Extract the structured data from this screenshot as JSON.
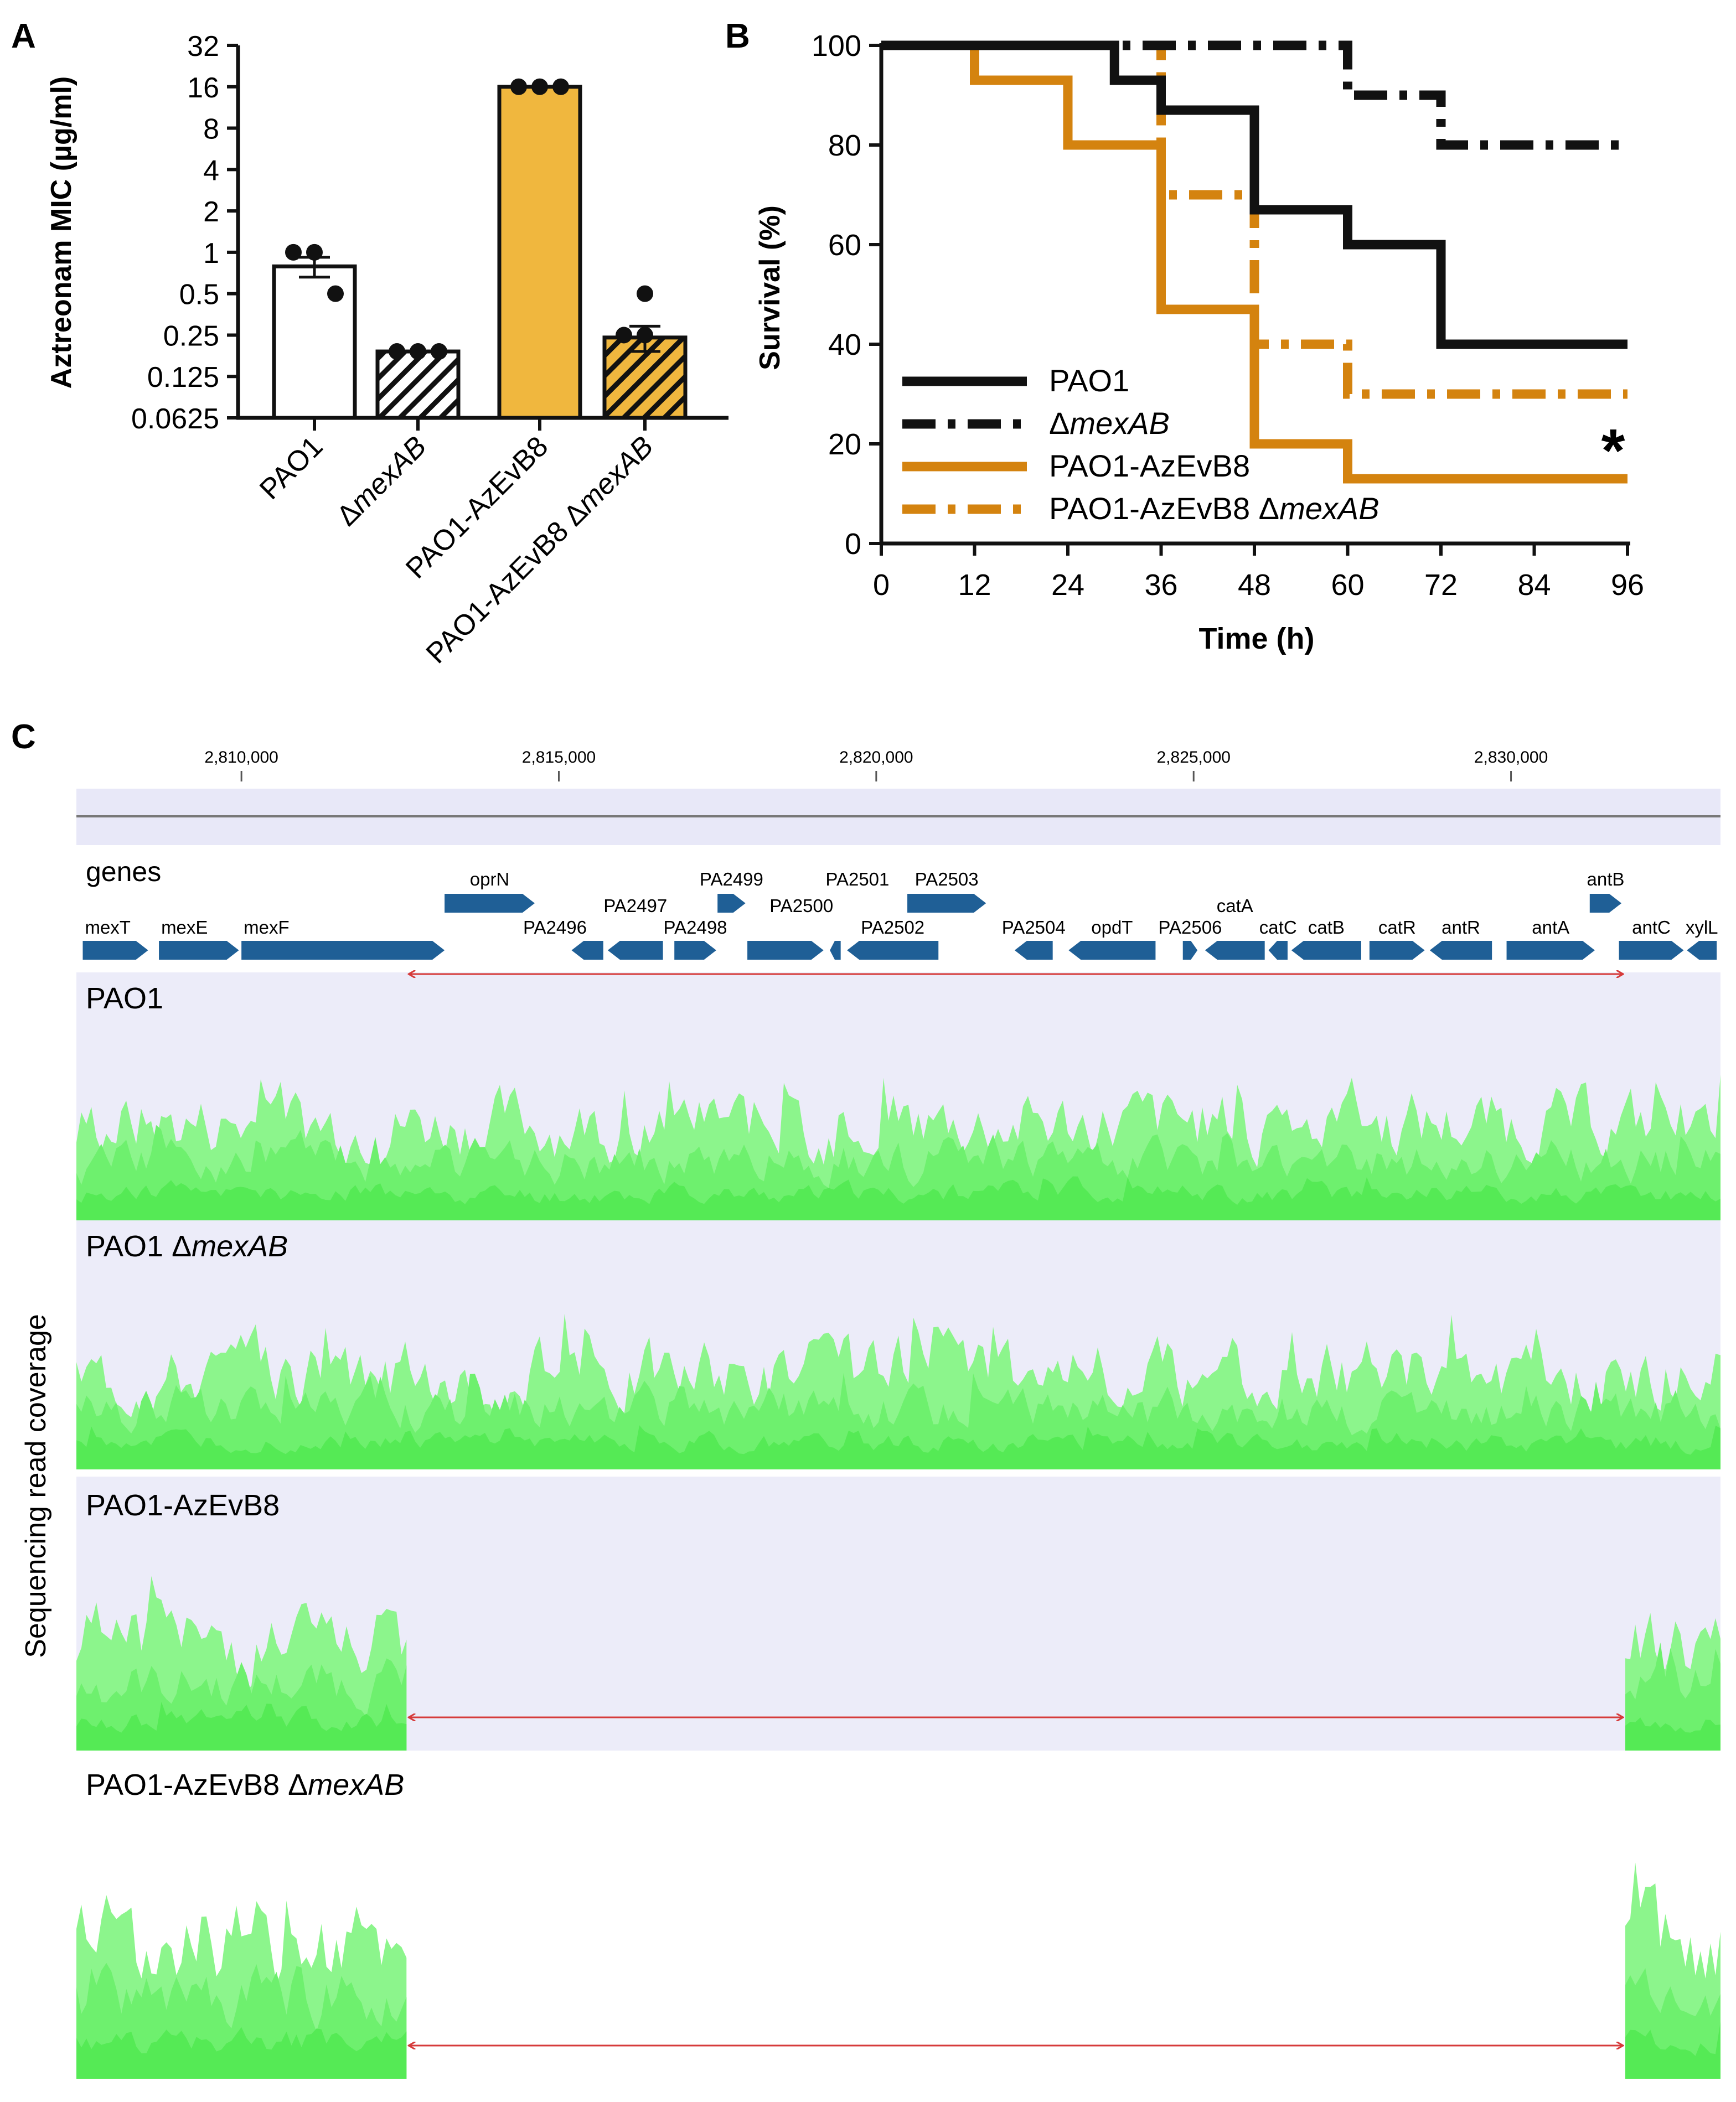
{
  "panel_labels": {
    "a": "A",
    "b": "B",
    "c": "C"
  },
  "chart_data": [
    {
      "type": "bar",
      "panel": "A",
      "ylabel": "Aztreonam MIC (µg/ml)",
      "yscale": "log2",
      "yticks": [
        "32",
        "16",
        "8",
        "4",
        "2",
        "1",
        "0.5",
        "0.25",
        "0.125",
        "0.0625"
      ],
      "ytick_values": [
        32,
        16,
        8,
        4,
        2,
        1,
        0.5,
        0.25,
        0.125,
        0.0625
      ],
      "ylim": [
        0.0625,
        32
      ],
      "categories": [
        {
          "pre": "PAO1",
          "it": "",
          "post": ""
        },
        {
          "pre": "Δ",
          "it": "mexAB",
          "post": ""
        },
        {
          "pre": "PAO1-AzEvB8",
          "it": "",
          "post": ""
        },
        {
          "pre": "PAO1-AzEvB8 Δ",
          "it": "mexAB",
          "post": ""
        }
      ],
      "values": [
        0.79,
        0.19,
        16,
        0.24
      ],
      "sem": [
        0.13,
        0,
        0,
        0.05
      ],
      "points": [
        [
          1,
          1,
          0.5
        ],
        [
          0.19,
          0.19,
          0.19
        ],
        [
          16,
          16,
          16
        ],
        [
          0.25,
          0.25,
          0.5
        ]
      ],
      "fills": [
        "#ffffff",
        "hatch-white",
        "#f0b73e",
        "hatch-orange"
      ]
    },
    {
      "type": "line",
      "subtype": "kaplan-meier",
      "panel": "B",
      "ylabel": "Survival (%)",
      "xlabel": "Time (h)",
      "xticks": [
        "0",
        "12",
        "24",
        "36",
        "48",
        "60",
        "72",
        "84",
        "96"
      ],
      "xtick_values": [
        0,
        12,
        24,
        36,
        48,
        60,
        72,
        84,
        96
      ],
      "yticks": [
        "0",
        "20",
        "40",
        "60",
        "80",
        "100"
      ],
      "ytick_values": [
        0,
        20,
        40,
        60,
        80,
        100
      ],
      "xlim": [
        0,
        96
      ],
      "ylim": [
        0,
        100
      ],
      "legend_position": "bottom-left",
      "annotation": "*",
      "series": [
        {
          "name_pre": "PAO1",
          "name_it": "",
          "color": "#111111",
          "dashed": false,
          "x": [
            0,
            30,
            30,
            36,
            36,
            48,
            48,
            60,
            60,
            72,
            72,
            96
          ],
          "y": [
            100,
            100,
            93,
            93,
            87,
            87,
            67,
            67,
            60,
            60,
            40,
            40
          ]
        },
        {
          "name_pre": "Δ",
          "name_it": "mexAB",
          "color": "#111111",
          "dashed": true,
          "x": [
            0,
            60,
            60,
            72,
            72,
            96
          ],
          "y": [
            100,
            100,
            90,
            90,
            80,
            80
          ]
        },
        {
          "name_pre": "PAO1-AzEvB8",
          "name_it": "",
          "color": "#d4830f",
          "dashed": false,
          "x": [
            0,
            12,
            12,
            24,
            24,
            36,
            36,
            48,
            48,
            60,
            60,
            96
          ],
          "y": [
            100,
            100,
            93,
            93,
            80,
            80,
            47,
            47,
            20,
            20,
            13,
            13
          ]
        },
        {
          "name_pre": "PAO1-AzEvB8 Δ",
          "name_it": "mexAB",
          "color": "#d4830f",
          "dashed": true,
          "x": [
            0,
            36,
            36,
            48,
            48,
            60,
            60,
            96
          ],
          "y": [
            100,
            100,
            70,
            70,
            40,
            40,
            30,
            30
          ]
        }
      ]
    },
    {
      "type": "area",
      "panel": "C",
      "ylabel": "Sequencing read coverage",
      "axis_ticks": [
        "2,810,000",
        "2,815,000",
        "2,820,000",
        "2,825,000",
        "2,830,000"
      ],
      "axis_tick_positions_bp": [
        2810000,
        2815000,
        2820000,
        2825000,
        2830000
      ],
      "region_bp": [
        2807400,
        2833300
      ],
      "deletion_bp": [
        2812600,
        2831800
      ],
      "genes_label": "genes",
      "genes": [
        {
          "name": "mexT",
          "start": 2807500,
          "end": 2808530,
          "strand": "+"
        },
        {
          "name": "mexE",
          "start": 2808700,
          "end": 2809960,
          "strand": "+"
        },
        {
          "name": "mexF",
          "start": 2810000,
          "end": 2813200,
          "strand": "+"
        },
        {
          "name": "oprN",
          "start": 2813200,
          "end": 2814620,
          "strand": "+"
        },
        {
          "name": "PA2496",
          "start": 2815200,
          "end": 2815700,
          "strand": "-"
        },
        {
          "name": "PA2497",
          "start": 2815770,
          "end": 2816640,
          "strand": "-"
        },
        {
          "name": "PA2498",
          "start": 2816820,
          "end": 2817480,
          "strand": "+"
        },
        {
          "name": "PA2499",
          "start": 2817500,
          "end": 2817940,
          "strand": "+"
        },
        {
          "name": "PA2500",
          "start": 2817970,
          "end": 2819170,
          "strand": "+"
        },
        {
          "name": "PA2501",
          "start": 2819270,
          "end": 2819440,
          "strand": "-"
        },
        {
          "name": "PA2502",
          "start": 2819540,
          "end": 2820980,
          "strand": "-"
        },
        {
          "name": "PA2503",
          "start": 2820490,
          "end": 2821730,
          "strand": "+"
        },
        {
          "name": "PA2504",
          "start": 2822180,
          "end": 2822780,
          "strand": "-"
        },
        {
          "name": "opdT",
          "start": 2823030,
          "end": 2824400,
          "strand": "-"
        },
        {
          "name": "PA2506",
          "start": 2824830,
          "end": 2825060,
          "strand": "+"
        },
        {
          "name": "catA",
          "start": 2825180,
          "end": 2826120,
          "strand": "-"
        },
        {
          "name": "catC",
          "start": 2826180,
          "end": 2826480,
          "strand": "-"
        },
        {
          "name": "catB",
          "start": 2826540,
          "end": 2827640,
          "strand": "-"
        },
        {
          "name": "catR",
          "start": 2827770,
          "end": 2828640,
          "strand": "+"
        },
        {
          "name": "antR",
          "start": 2828720,
          "end": 2829700,
          "strand": "-"
        },
        {
          "name": "antA",
          "start": 2829930,
          "end": 2831320,
          "strand": "+"
        },
        {
          "name": "antB",
          "start": 2831240,
          "end": 2831740,
          "strand": "+"
        },
        {
          "name": "antC",
          "start": 2831700,
          "end": 2832720,
          "strand": "+"
        },
        {
          "name": "xylL",
          "start": 2832770,
          "end": 2833240,
          "strand": "-"
        }
      ],
      "tracks": [
        {
          "pre": "PAO1",
          "it": "",
          "deleted": false,
          "shaded": true
        },
        {
          "pre": "PAO1 Δ",
          "it": "mexAB",
          "deleted": false,
          "shaded": true
        },
        {
          "pre": "PAO1-AzEvB8",
          "it": "",
          "deleted": true,
          "shaded": true
        },
        {
          "pre": "PAO1-AzEvB8 Δ",
          "it": "mexAB",
          "deleted": true,
          "shaded": false
        }
      ]
    }
  ]
}
